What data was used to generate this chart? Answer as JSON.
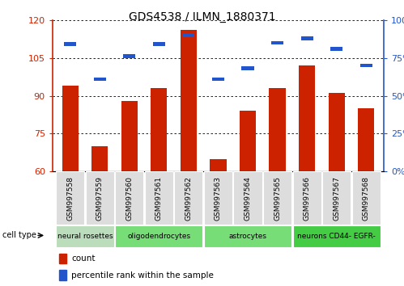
{
  "title": "GDS4538 / ILMN_1880371",
  "samples": [
    "GSM997558",
    "GSM997559",
    "GSM997560",
    "GSM997561",
    "GSM997562",
    "GSM997563",
    "GSM997564",
    "GSM997565",
    "GSM997566",
    "GSM997567",
    "GSM997568"
  ],
  "count_values": [
    94,
    70,
    88,
    93,
    116,
    65,
    84,
    93,
    102,
    91,
    85
  ],
  "percentile_values": [
    84,
    61,
    76,
    84,
    90,
    61,
    68,
    85,
    88,
    81,
    70
  ],
  "ylim_left": [
    60,
    120
  ],
  "ylim_right": [
    0,
    100
  ],
  "yticks_left": [
    60,
    75,
    90,
    105,
    120
  ],
  "yticks_right": [
    0,
    25,
    50,
    75,
    100
  ],
  "bar_color_red": "#cc2200",
  "bar_color_blue": "#2255cc",
  "cell_type_groups": [
    {
      "label": "neural rosettes",
      "start": 0,
      "end": 1,
      "color": "#cceecc"
    },
    {
      "label": "oligodendrocytes",
      "start": 2,
      "end": 4,
      "color": "#88dd88"
    },
    {
      "label": "astrocytes",
      "start": 5,
      "end": 7,
      "color": "#88dd88"
    },
    {
      "label": "neurons CD44- EGFR-",
      "start": 8,
      "end": 10,
      "color": "#44cc44"
    }
  ],
  "legend_count_label": "count",
  "legend_percentile_label": "percentile rank within the sample",
  "cell_type_label": "cell type",
  "base_value": 60,
  "bar_width": 0.55
}
